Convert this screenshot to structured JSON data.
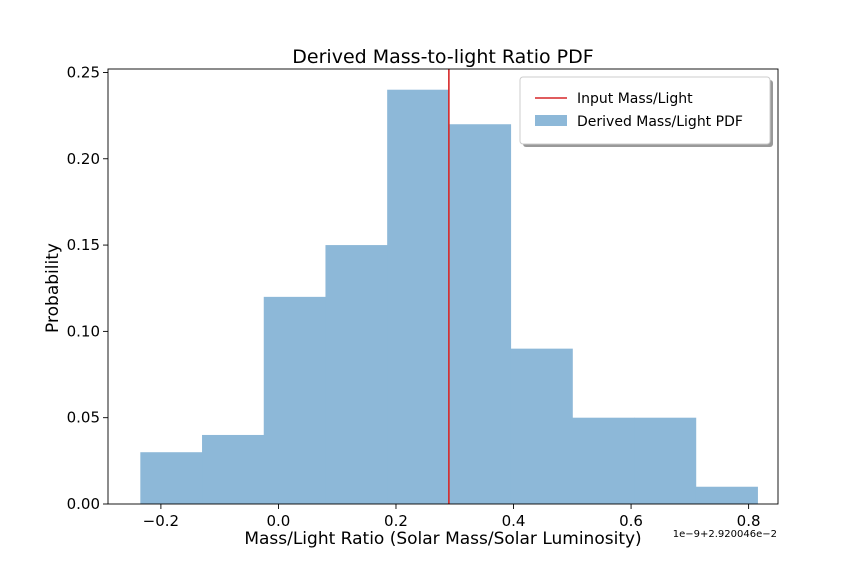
{
  "chart_data": {
    "type": "bar",
    "title": "Derived Mass-to-light Ratio PDF",
    "xlabel": "Mass/Light Ratio (Solar Mass/Solar Luminosity)",
    "ylabel": "Probability",
    "x_offset_text": "1e−9+2.920046e−2",
    "xlim": [
      -0.29,
      0.85
    ],
    "ylim": [
      0,
      0.252
    ],
    "xticks": [
      -0.2,
      0.0,
      0.2,
      0.4,
      0.6,
      0.8
    ],
    "xtick_labels": [
      "−0.2",
      "0.0",
      "0.2",
      "0.4",
      "0.6",
      "0.8"
    ],
    "yticks": [
      0.0,
      0.05,
      0.1,
      0.15,
      0.2,
      0.25
    ],
    "ytick_labels": [
      "0.00",
      "0.05",
      "0.10",
      "0.15",
      "0.20",
      "0.25"
    ],
    "grid": false,
    "legend_position": "top-right",
    "bin_edges": [
      -0.235,
      -0.13,
      -0.025,
      0.08,
      0.185,
      0.29,
      0.395,
      0.5,
      0.605,
      0.71,
      0.815
    ],
    "series": [
      {
        "name": "Derived Mass/Light PDF",
        "kind": "histogram",
        "color": "#8db8d8",
        "values": [
          0.03,
          0.04,
          0.12,
          0.15,
          0.24,
          0.22,
          0.09,
          0.05,
          0.05,
          0.01
        ]
      },
      {
        "name": "Input Mass/Light",
        "kind": "vline",
        "color": "#d62728",
        "x": 0.29
      }
    ]
  }
}
